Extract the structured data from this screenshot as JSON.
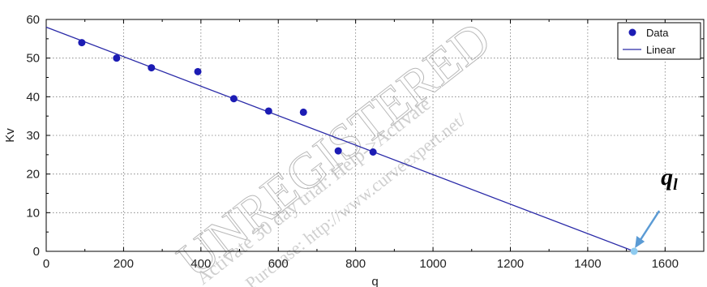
{
  "chart_data": {
    "type": "scatter",
    "xlabel": "q",
    "ylabel": "Kv",
    "xlim": [
      0,
      1700
    ],
    "ylim": [
      0,
      60
    ],
    "x_ticks": [
      "0",
      "200",
      "400",
      "600",
      "800",
      "1000",
      "1200",
      "1400",
      "1600"
    ],
    "y_ticks": [
      "0",
      "10",
      "20",
      "30",
      "40",
      "50",
      "60"
    ],
    "grid": true,
    "legend_position": "top-right",
    "series": [
      {
        "name": "Data",
        "type": "scatter",
        "color": "#1c1cb4",
        "points": [
          {
            "x": 92,
            "y": 54
          },
          {
            "x": 182,
            "y": 50
          },
          {
            "x": 272,
            "y": 47.5
          },
          {
            "x": 392,
            "y": 46.5
          },
          {
            "x": 485,
            "y": 39.5
          },
          {
            "x": 575,
            "y": 36.3
          },
          {
            "x": 665,
            "y": 36
          },
          {
            "x": 755,
            "y": 26
          },
          {
            "x": 845,
            "y": 25.7
          }
        ]
      },
      {
        "name": "Linear",
        "type": "line",
        "color": "#2a2aa8",
        "points": [
          {
            "x": 0,
            "y": 58
          },
          {
            "x": 1520,
            "y": 0
          }
        ]
      }
    ],
    "annotation": {
      "symbol": "q",
      "subscript": "l",
      "point": {
        "x": 1520,
        "y": 0
      },
      "marker_color": "#8ecbf0",
      "arrow_color": "#5b9bd5"
    },
    "watermark": {
      "line1": "UNREGISTERED",
      "line2": "Activate 30 day trial: Help->Activate",
      "line3": "Purchase: http://www.curveexpert.net/"
    }
  }
}
